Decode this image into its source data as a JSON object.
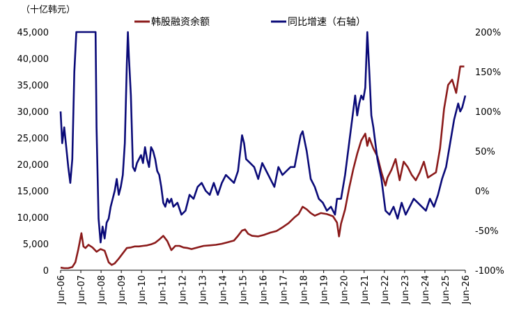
{
  "chart_data": {
    "type": "line",
    "y_unit_label": "（十亿韩元）",
    "legend_position": "top",
    "grid": false,
    "x_tick_labels": [
      "Jun-06",
      "Jun-07",
      "Jun-08",
      "Jun-09",
      "Jun-10",
      "Jun-11",
      "Jun-12",
      "Jun-13",
      "Jun-14",
      "Jun-15",
      "Jun-16",
      "Jun-17",
      "Jun-18",
      "Jun-19",
      "Jun-20",
      "Jun-21",
      "Jun-22",
      "Jun-23",
      "Jun-24",
      "Jun-25",
      "Jun-26"
    ],
    "x_range": [
      2006.42,
      2026.45
    ],
    "y_left": {
      "range": [
        0,
        45000
      ],
      "ticks": [
        "0",
        "5,000",
        "10,000",
        "15,000",
        "20,000",
        "25,000",
        "30,000",
        "35,000",
        "40,000",
        "45,000"
      ]
    },
    "y_right": {
      "range": [
        -100,
        200
      ],
      "ticks": [
        "-100%",
        "-50%",
        "0%",
        "50%",
        "100%",
        "150%",
        "200%"
      ]
    },
    "series": [
      {
        "name": "韩股融资余额",
        "axis": "left",
        "color": "#8B1A1A",
        "x": [
          2006.42,
          2006.6,
          2006.8,
          2007.0,
          2007.15,
          2007.3,
          2007.45,
          2007.55,
          2007.65,
          2007.8,
          2008.0,
          2008.2,
          2008.4,
          2008.6,
          2008.8,
          2008.95,
          2009.1,
          2009.3,
          2009.5,
          2009.7,
          2009.9,
          2010.1,
          2010.3,
          2010.5,
          2010.7,
          2010.9,
          2011.1,
          2011.3,
          2011.5,
          2011.7,
          2011.9,
          2012.1,
          2012.3,
          2012.5,
          2012.7,
          2012.9,
          2013.2,
          2013.5,
          2013.8,
          2014.1,
          2014.4,
          2014.7,
          2015.0,
          2015.2,
          2015.4,
          2015.55,
          2015.7,
          2015.9,
          2016.2,
          2016.5,
          2016.8,
          2017.1,
          2017.4,
          2017.7,
          2018.0,
          2018.2,
          2018.4,
          2018.6,
          2018.8,
          2019.0,
          2019.3,
          2019.6,
          2019.9,
          2020.1,
          2020.2,
          2020.3,
          2020.5,
          2020.7,
          2020.9,
          2021.1,
          2021.3,
          2021.5,
          2021.6,
          2021.7,
          2021.9,
          2022.1,
          2022.3,
          2022.5,
          2022.6,
          2022.8,
          2023.0,
          2023.2,
          2023.4,
          2023.6,
          2023.8,
          2024.0,
          2024.2,
          2024.4,
          2024.6,
          2024.8,
          2025.0,
          2025.2,
          2025.4,
          2025.6,
          2025.8,
          2026.0,
          2026.2,
          2026.4
        ],
        "y": [
          500,
          400,
          400,
          600,
          1500,
          4000,
          7000,
          4500,
          4200,
          4800,
          4300,
          3500,
          4000,
          3700,
          1500,
          1000,
          1300,
          2200,
          3200,
          4200,
          4300,
          4500,
          4500,
          4600,
          4700,
          4900,
          5200,
          5800,
          6500,
          5500,
          3800,
          4600,
          4600,
          4300,
          4200,
          4000,
          4300,
          4600,
          4700,
          4800,
          5000,
          5300,
          5600,
          6500,
          7500,
          7700,
          6900,
          6500,
          6400,
          6700,
          7100,
          7400,
          8100,
          8900,
          10000,
          10600,
          12000,
          11500,
          10800,
          10300,
          10800,
          10600,
          10200,
          9000,
          6400,
          8800,
          11500,
          15500,
          19000,
          22000,
          24500,
          25800,
          23500,
          25000,
          23000,
          21500,
          18500,
          16000,
          17500,
          19000,
          21000,
          17000,
          20500,
          19500,
          18000,
          17000,
          18500,
          20500,
          17500,
          18000,
          18500,
          23000,
          30500,
          35000,
          36000,
          33500,
          38500,
          38500
        ]
      },
      {
        "name": "同比增速（右轴）",
        "axis": "right",
        "color": "#0A0A78",
        "x": [
          2006.42,
          2006.5,
          2006.6,
          2006.7,
          2006.8,
          2006.9,
          2007.0,
          2007.1,
          2007.2,
          2007.25,
          2008.15,
          2008.2,
          2008.3,
          2008.4,
          2008.5,
          2008.6,
          2008.7,
          2008.8,
          2008.9,
          2009.0,
          2009.1,
          2009.2,
          2009.3,
          2009.4,
          2009.5,
          2009.6,
          2009.7,
          2009.75,
          2009.8,
          2009.9,
          2010.0,
          2010.1,
          2010.2,
          2010.3,
          2010.4,
          2010.5,
          2010.6,
          2010.7,
          2010.8,
          2010.9,
          2011.0,
          2011.1,
          2011.2,
          2011.3,
          2011.4,
          2011.5,
          2011.6,
          2011.7,
          2011.8,
          2011.9,
          2012.0,
          2012.2,
          2012.4,
          2012.6,
          2012.8,
          2013.0,
          2013.2,
          2013.4,
          2013.6,
          2013.8,
          2014.0,
          2014.2,
          2014.4,
          2014.6,
          2014.8,
          2015.0,
          2015.2,
          2015.4,
          2015.5,
          2015.6,
          2015.8,
          2016.0,
          2016.2,
          2016.4,
          2016.6,
          2016.8,
          2017.0,
          2017.2,
          2017.4,
          2017.6,
          2017.8,
          2018.0,
          2018.15,
          2018.3,
          2018.4,
          2018.6,
          2018.8,
          2019.0,
          2019.2,
          2019.4,
          2019.6,
          2019.8,
          2020.0,
          2020.1,
          2020.3,
          2020.5,
          2020.7,
          2020.9,
          2021.0,
          2021.1,
          2021.2,
          2021.3,
          2021.4,
          2021.5,
          2021.6,
          2021.7,
          2021.8,
          2021.9,
          2022.1,
          2022.3,
          2022.5,
          2022.7,
          2022.9,
          2023.1,
          2023.3,
          2023.5,
          2023.7,
          2023.9,
          2024.1,
          2024.3,
          2024.5,
          2024.7,
          2024.9,
          2025.1,
          2025.3,
          2025.5,
          2025.7,
          2025.9,
          2026.0,
          2026.1,
          2026.2,
          2026.3,
          2026.45
        ],
        "y": [
          100,
          60,
          80,
          55,
          30,
          10,
          40,
          150,
          200,
          200,
          200,
          80,
          -35,
          -65,
          -45,
          -60,
          -40,
          -35,
          -20,
          -10,
          0,
          15,
          -5,
          5,
          20,
          60,
          160,
          200,
          170,
          120,
          30,
          25,
          35,
          40,
          45,
          35,
          55,
          40,
          30,
          55,
          50,
          40,
          25,
          20,
          5,
          -15,
          -20,
          -10,
          -15,
          -10,
          -20,
          -15,
          -30,
          -25,
          -5,
          -10,
          5,
          10,
          0,
          -5,
          10,
          -5,
          10,
          20,
          15,
          10,
          25,
          70,
          60,
          40,
          35,
          30,
          15,
          35,
          25,
          15,
          5,
          30,
          20,
          25,
          30,
          30,
          50,
          70,
          75,
          50,
          15,
          5,
          -10,
          -15,
          -25,
          -20,
          -30,
          -10,
          -10,
          20,
          60,
          100,
          120,
          95,
          110,
          120,
          115,
          130,
          200,
          150,
          95,
          80,
          40,
          15,
          -25,
          -30,
          -20,
          -35,
          -15,
          -30,
          -20,
          -10,
          -15,
          -20,
          -25,
          -10,
          -20,
          -5,
          15,
          30,
          60,
          90,
          100,
          110,
          100,
          105,
          120
        ]
      }
    ]
  }
}
